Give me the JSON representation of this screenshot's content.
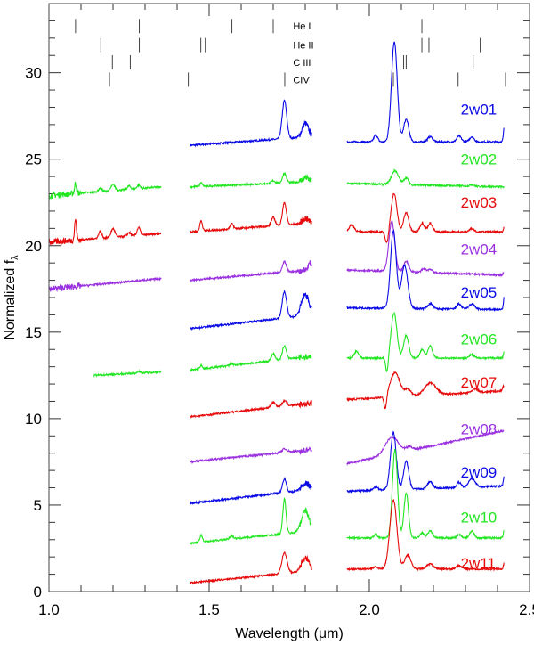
{
  "chart_data": {
    "type": "line",
    "title": "",
    "xlabel": "Wavelength (μm)",
    "ylabel": "Normalized f",
    "ylabel_subscript": "λ",
    "xlim": [
      1.0,
      2.5
    ],
    "ylim": [
      0,
      34
    ],
    "xticks": [
      "1.0",
      "1.5",
      "2.0",
      "2.5"
    ],
    "yticks": [
      "0",
      "5",
      "10",
      "15",
      "20",
      "25",
      "30"
    ],
    "grid": false,
    "colors": {
      "blue": "#0a0ae6",
      "green": "#22e622",
      "red": "#e60a0a",
      "purple": "#9a30e0"
    },
    "line_markers": [
      {
        "name": "He I",
        "label_y": 32.7,
        "x": [
          1.083,
          1.282,
          1.571,
          1.7,
          2.164
        ]
      },
      {
        "name": "He II",
        "label_y": 31.6,
        "x": [
          1.162,
          1.282,
          1.474,
          1.488,
          2.164,
          2.186,
          2.346
        ]
      },
      {
        "name": "C III",
        "label_y": 30.6,
        "x": [
          1.198,
          1.254,
          2.107,
          2.115,
          2.324
        ]
      },
      {
        "name": "CIV",
        "label_y": 29.6,
        "x": [
          1.189,
          1.435,
          1.736,
          2.075,
          2.277,
          2.425
        ]
      }
    ],
    "series": [
      {
        "name": "2w01",
        "color": "blue",
        "label_y": 27.9,
        "segments": [
          {
            "range": [
              1.44,
              1.82
            ],
            "base": [
              25.8,
              26.3
            ],
            "peaks": [
              [
                1.735,
                2.2,
                0.007
              ],
              [
                1.8,
                0.8,
                0.01
              ]
            ]
          },
          {
            "range": [
              1.93,
              2.42
            ],
            "base": [
              26.0,
              26.0
            ],
            "peaks": [
              [
                2.02,
                0.4,
                0.006
              ],
              [
                2.078,
                5.8,
                0.009
              ],
              [
                2.115,
                1.3,
                0.008
              ],
              [
                2.19,
                0.3,
                0.008
              ],
              [
                2.28,
                0.35,
                0.007
              ],
              [
                2.32,
                0.3,
                0.007
              ],
              [
                2.425,
                1.8,
                0.004
              ]
            ]
          }
        ]
      },
      {
        "name": "2w02",
        "color": "green",
        "label_y": 25.0,
        "segments": [
          {
            "range": [
              1.0,
              1.35
            ],
            "base": [
              22.9,
              23.4
            ],
            "peaks": [
              [
                1.083,
                0.6,
                0.003
              ],
              [
                1.16,
                0.2,
                0.005
              ],
              [
                1.2,
                0.35,
                0.006
              ],
              [
                1.25,
                0.2,
                0.005
              ],
              [
                1.28,
                0.2,
                0.005
              ]
            ]
          },
          {
            "range": [
              1.44,
              1.82
            ],
            "base": [
              23.4,
              23.7
            ],
            "peaks": [
              [
                1.475,
                0.2,
                0.004
              ],
              [
                1.7,
                0.15,
                0.006
              ],
              [
                1.735,
                0.55,
                0.006
              ],
              [
                1.8,
                0.25,
                0.01
              ]
            ]
          },
          {
            "range": [
              1.93,
              2.42
            ],
            "base": [
              23.6,
              23.4
            ],
            "peaks": [
              [
                2.08,
                0.8,
                0.011
              ],
              [
                2.115,
                0.4,
                0.007
              ],
              [
                2.32,
                0.1,
                0.006
              ]
            ]
          }
        ]
      },
      {
        "name": "2w03",
        "color": "red",
        "label_y": 22.5,
        "segments": [
          {
            "range": [
              1.0,
              1.35
            ],
            "base": [
              20.2,
              20.7
            ],
            "peaks": [
              [
                1.083,
                1.2,
                0.003
              ],
              [
                1.16,
                0.4,
                0.005
              ],
              [
                1.2,
                0.5,
                0.006
              ],
              [
                1.25,
                0.2,
                0.005
              ],
              [
                1.28,
                0.45,
                0.005
              ]
            ]
          },
          {
            "range": [
              1.44,
              1.82
            ],
            "base": [
              20.8,
              21.3
            ],
            "peaks": [
              [
                1.475,
                0.6,
                0.004
              ],
              [
                1.57,
                0.3,
                0.005
              ],
              [
                1.7,
                0.5,
                0.006
              ],
              [
                1.735,
                1.3,
                0.006
              ],
              [
                1.8,
                0.3,
                0.01
              ]
            ]
          },
          {
            "range": [
              1.93,
              2.42
            ],
            "base": [
              20.8,
              20.8
            ],
            "peaks": [
              [
                1.945,
                0.4,
                0.008
              ],
              [
                2.055,
                -0.7,
                0.005
              ],
              [
                2.077,
                2.2,
                0.009
              ],
              [
                2.115,
                1.1,
                0.008
              ],
              [
                2.165,
                0.5,
                0.007
              ],
              [
                2.19,
                0.5,
                0.007
              ],
              [
                2.32,
                0.2,
                0.007
              ],
              [
                2.425,
                0.7,
                0.004
              ]
            ]
          }
        ]
      },
      {
        "name": "2w04",
        "color": "purple",
        "label_y": 19.8,
        "segments": [
          {
            "range": [
              1.0,
              1.35
            ],
            "base": [
              17.5,
              18.1
            ],
            "peaks": []
          },
          {
            "range": [
              1.44,
              1.82
            ],
            "base": [
              18.0,
              18.6
            ],
            "peaks": [
              [
                1.735,
                0.6,
                0.006
              ],
              [
                1.815,
                0.4,
                0.006
              ]
            ]
          },
          {
            "range": [
              1.93,
              2.42
            ],
            "base": [
              18.6,
              18.3
            ],
            "peaks": [
              [
                2.07,
                2.9,
                0.009
              ],
              [
                2.115,
                0.6,
                0.008
              ],
              [
                2.17,
                0.2,
                0.007
              ],
              [
                2.19,
                0.2,
                0.007
              ],
              [
                2.425,
                0.4,
                0.004
              ]
            ]
          }
        ]
      },
      {
        "name": "2w05",
        "color": "blue",
        "label_y": 17.3,
        "segments": [
          {
            "range": [
              1.44,
              1.82
            ],
            "base": [
              15.2,
              16.0
            ],
            "peaks": [
              [
                1.735,
                1.5,
                0.007
              ],
              [
                1.8,
                1.2,
                0.012
              ]
            ]
          },
          {
            "range": [
              1.93,
              2.42
            ],
            "base": [
              16.4,
              16.3
            ],
            "peaks": [
              [
                2.075,
                4.5,
                0.009
              ],
              [
                2.11,
                2.5,
                0.01
              ],
              [
                2.19,
                0.3,
                0.008
              ],
              [
                2.28,
                0.3,
                0.007
              ],
              [
                2.32,
                0.3,
                0.009
              ],
              [
                2.425,
                1.5,
                0.004
              ]
            ]
          }
        ]
      },
      {
        "name": "2w06",
        "color": "green",
        "label_y": 14.6,
        "segments": [
          {
            "range": [
              1.14,
              1.35
            ],
            "base": [
              12.5,
              12.7
            ],
            "peaks": [
              [
                1.28,
                0.1,
                0.004
              ]
            ]
          },
          {
            "range": [
              1.44,
              1.82
            ],
            "base": [
              12.8,
              13.6
            ],
            "peaks": [
              [
                1.475,
                0.2,
                0.004
              ],
              [
                1.57,
                0.1,
                0.005
              ],
              [
                1.7,
                0.4,
                0.006
              ],
              [
                1.735,
                0.8,
                0.006
              ]
            ]
          },
          {
            "range": [
              1.93,
              2.42
            ],
            "base": [
              13.5,
              13.5
            ],
            "peaks": [
              [
                1.96,
                0.4,
                0.007
              ],
              [
                2.055,
                -0.9,
                0.004
              ],
              [
                2.077,
                2.6,
                0.009
              ],
              [
                2.115,
                1.3,
                0.008
              ],
              [
                2.165,
                0.5,
                0.007
              ],
              [
                2.19,
                0.7,
                0.007
              ],
              [
                2.32,
                0.2,
                0.007
              ],
              [
                2.425,
                0.8,
                0.004
              ]
            ]
          }
        ]
      },
      {
        "name": "2w07",
        "color": "red",
        "label_y": 12.1,
        "segments": [
          {
            "range": [
              1.44,
              1.82
            ],
            "base": [
              10.1,
              10.9
            ],
            "peaks": [
              [
                1.7,
                0.3,
                0.007
              ],
              [
                1.735,
                0.3,
                0.007
              ]
            ]
          },
          {
            "range": [
              1.93,
              2.42
            ],
            "base": [
              11.1,
              11.6
            ],
            "peaks": [
              [
                2.05,
                -0.8,
                0.004
              ],
              [
                2.08,
                1.4,
                0.015
              ],
              [
                2.12,
                0.4,
                0.01
              ],
              [
                2.19,
                0.7,
                0.018
              ],
              [
                2.33,
                0.2,
                0.01
              ],
              [
                2.42,
                0.3,
                0.004
              ]
            ]
          }
        ]
      },
      {
        "name": "2w08",
        "color": "purple",
        "label_y": 9.4,
        "segments": [
          {
            "range": [
              1.44,
              1.82
            ],
            "base": [
              7.5,
              8.2
            ],
            "peaks": [
              [
                1.735,
                0.2,
                0.008
              ]
            ]
          },
          {
            "range": [
              1.93,
              2.42
            ],
            "base": [
              7.4,
              9.3
            ],
            "peaks": [
              [
                2.07,
                1.0,
                0.02
              ],
              [
                2.125,
                0.2,
                0.01
              ]
            ]
          }
        ]
      },
      {
        "name": "2w09",
        "color": "blue",
        "label_y": 6.9,
        "segments": [
          {
            "range": [
              1.44,
              1.82
            ],
            "base": [
              5.1,
              5.9
            ],
            "peaks": [
              [
                1.735,
                0.8,
                0.006
              ],
              [
                1.8,
                0.4,
                0.012
              ]
            ]
          },
          {
            "range": [
              1.93,
              2.42
            ],
            "base": [
              5.8,
              6.1
            ],
            "peaks": [
              [
                2.02,
                0.2,
                0.007
              ],
              [
                2.075,
                3.3,
                0.009
              ],
              [
                2.115,
                1.6,
                0.008
              ],
              [
                2.19,
                0.4,
                0.008
              ],
              [
                2.28,
                0.3,
                0.007
              ],
              [
                2.32,
                0.5,
                0.01
              ],
              [
                2.425,
                1.3,
                0.004
              ]
            ]
          }
        ]
      },
      {
        "name": "2w10",
        "color": "green",
        "label_y": 4.3,
        "segments": [
          {
            "range": [
              1.44,
              1.82
            ],
            "base": [
              2.8,
              3.5
            ],
            "peaks": [
              [
                1.475,
                0.4,
                0.004
              ],
              [
                1.57,
                0.2,
                0.005
              ],
              [
                1.735,
                2.0,
                0.005
              ],
              [
                1.8,
                1.2,
                0.012
              ]
            ]
          },
          {
            "range": [
              1.93,
              2.42
            ],
            "base": [
              3.1,
              3.1
            ],
            "peaks": [
              [
                2.02,
                0.2,
                0.006
              ],
              [
                2.08,
                5.1,
                0.008
              ],
              [
                2.115,
                2.6,
                0.007
              ],
              [
                2.165,
                0.3,
                0.007
              ],
              [
                2.19,
                0.4,
                0.007
              ],
              [
                2.28,
                0.2,
                0.006
              ],
              [
                2.32,
                0.4,
                0.007
              ],
              [
                2.425,
                1.0,
                0.004
              ]
            ]
          }
        ]
      },
      {
        "name": "2w11",
        "color": "red",
        "label_y": 1.65,
        "segments": [
          {
            "range": [
              1.44,
              1.82
            ],
            "base": [
              0.5,
              1.2
            ],
            "peaks": [
              [
                1.735,
                1.2,
                0.008
              ],
              [
                1.8,
                0.8,
                0.012
              ]
            ]
          },
          {
            "range": [
              1.93,
              2.42
            ],
            "base": [
              1.3,
              1.3
            ],
            "peaks": [
              [
                2.02,
                0.15,
                0.006
              ],
              [
                2.075,
                4.0,
                0.011
              ],
              [
                2.12,
                0.8,
                0.01
              ],
              [
                2.19,
                0.3,
                0.01
              ],
              [
                2.28,
                0.2,
                0.008
              ],
              [
                2.425,
                0.8,
                0.004
              ]
            ]
          }
        ]
      }
    ]
  }
}
